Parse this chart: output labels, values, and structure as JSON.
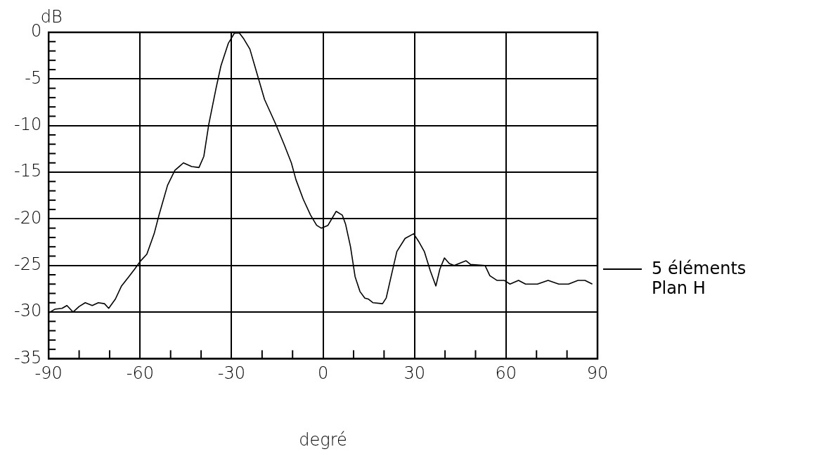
{
  "chart_data": {
    "type": "line",
    "xlabel": "degré",
    "ylabel": "dB",
    "xlim": [
      -90,
      90
    ],
    "xticks": [
      -90,
      {
        "value": -80,
        "label": null
      },
      {
        "value": -70,
        "label": null
      },
      -60,
      {
        "value": -50,
        "label": null
      },
      {
        "value": -40,
        "label": null
      },
      -30,
      {
        "value": -20,
        "label": null
      },
      {
        "value": -10,
        "label": null
      },
      0,
      {
        "value": 10,
        "label": null
      },
      {
        "value": 20,
        "label": null
      },
      30,
      {
        "value": 40,
        "label": null
      },
      {
        "value": 50,
        "label": null
      },
      60,
      {
        "value": 70,
        "label": null
      },
      {
        "value": 80,
        "label": null
      },
      90
    ],
    "ylim": [
      -35,
      0
    ],
    "yticks": [
      0,
      {
        "value": -1,
        "label": null
      },
      {
        "value": -2,
        "label": null
      },
      {
        "value": -3,
        "label": null
      },
      {
        "value": -4,
        "label": null
      },
      -5,
      {
        "value": -6,
        "label": null
      },
      {
        "value": -7,
        "label": null
      },
      {
        "value": -8,
        "label": null
      },
      {
        "value": -9,
        "label": null
      },
      -10,
      {
        "value": -11,
        "label": null
      },
      {
        "value": -12,
        "label": null
      },
      {
        "value": -13,
        "label": null
      },
      {
        "value": -14,
        "label": null
      },
      -15,
      {
        "value": -16,
        "label": null
      },
      {
        "value": -17,
        "label": null
      },
      {
        "value": -18,
        "label": null
      },
      {
        "value": -19,
        "label": null
      },
      -20,
      {
        "value": -21,
        "label": null
      },
      {
        "value": -22,
        "label": null
      },
      {
        "value": -23,
        "label": null
      },
      {
        "value": -24,
        "label": null
      },
      -25,
      {
        "value": -26,
        "label": null
      },
      {
        "value": -27,
        "label": null
      },
      {
        "value": -28,
        "label": null
      },
      {
        "value": -29,
        "label": null
      },
      -30,
      {
        "value": -31,
        "label": null
      },
      {
        "value": -32,
        "label": null
      },
      {
        "value": -33,
        "label": null
      },
      {
        "value": -34,
        "label": null
      },
      -35
    ],
    "grid": true,
    "legend": "right",
    "marker": "none",
    "line_style": "solid",
    "series": [
      {
        "name": "5 éléments Plan H",
        "color": "#000000",
        "x": [
          -90,
          -88,
          -85.6,
          -84,
          -82,
          -80,
          -78,
          -75.7,
          -73.7,
          -71.7,
          -70.3,
          -68.1,
          -66.1,
          -63.7,
          -61.8,
          -59.8,
          -57.8,
          -55.4,
          -53.8,
          -51,
          -48.6,
          -45.8,
          -43.1,
          -40.7,
          -39.1,
          -37.5,
          -35.1,
          -33.5,
          -31.1,
          -29.1,
          -27.5,
          -26,
          -24,
          -21.6,
          -19.2,
          -15.6,
          -12.8,
          -10.4,
          -8.9,
          -6.5,
          -4.1,
          -2.1,
          -0.6,
          1.6,
          4.3,
          6.3,
          7.4,
          9,
          10.5,
          12.1,
          13.7,
          14.8,
          16.4,
          19.5,
          20.7,
          22.3,
          24.2,
          26.9,
          29.7,
          31.3,
          33.2,
          35.2,
          37,
          38.3,
          39.8,
          41.4,
          43,
          45.3,
          46.9,
          48.4,
          53.1,
          54.7,
          57,
          59.4,
          61.3,
          64.1,
          66.4,
          70.3,
          73.8,
          77.3,
          80.5,
          83.6,
          85.9,
          88.3
        ],
        "values": [
          -30.1,
          -29.7,
          -29.6,
          -29.3,
          -30.0,
          -29.4,
          -29.0,
          -29.3,
          -29.0,
          -29.1,
          -29.6,
          -28.6,
          -27.2,
          -26.2,
          -25.4,
          -24.5,
          -23.8,
          -21.6,
          -19.6,
          -16.4,
          -14.8,
          -14.0,
          -14.4,
          -14.5,
          -13.3,
          -9.9,
          -6.0,
          -3.6,
          -1.2,
          -0.1,
          -0.05,
          -0.7,
          -1.8,
          -4.5,
          -7.2,
          -9.8,
          -12.0,
          -14.0,
          -15.8,
          -17.9,
          -19.6,
          -20.7,
          -21.0,
          -20.7,
          -19.2,
          -19.6,
          -20.6,
          -23.0,
          -26.2,
          -27.8,
          -28.5,
          -28.6,
          -29.0,
          -29.1,
          -28.5,
          -26.2,
          -23.5,
          -22.1,
          -21.6,
          -22.4,
          -23.5,
          -25.6,
          -27.2,
          -25.4,
          -24.2,
          -24.8,
          -25.0,
          -24.7,
          -24.5,
          -24.9,
          -25.0,
          -26.1,
          -26.6,
          -26.6,
          -27.0,
          -26.6,
          -27.0,
          -27.0,
          -26.6,
          -27.0,
          -27.0,
          -26.6,
          -26.6,
          -27.0
        ]
      }
    ]
  }
}
